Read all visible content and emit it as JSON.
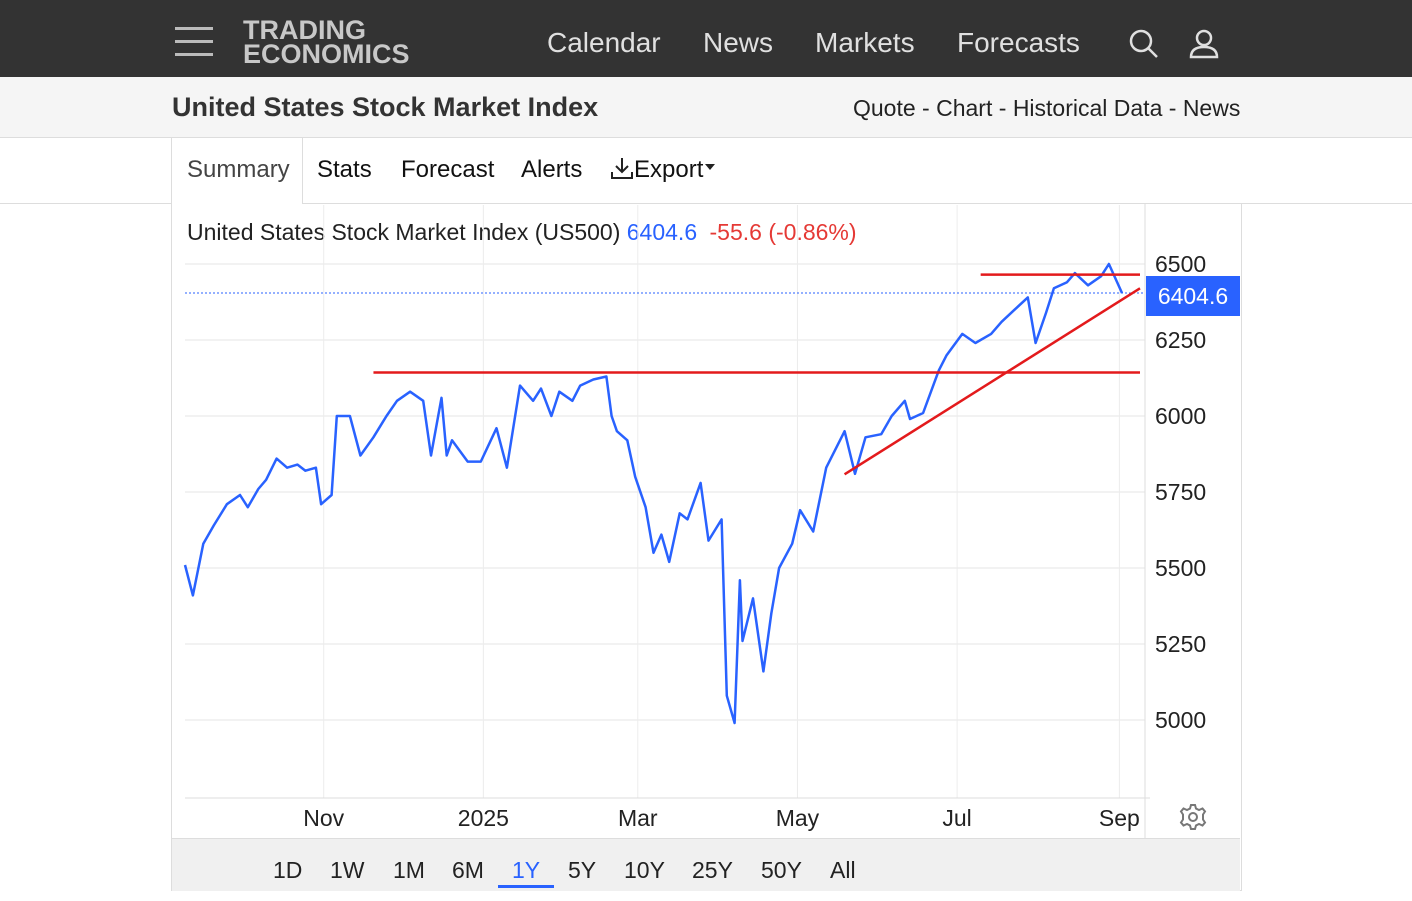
{
  "header": {
    "logo_line1": "TRADING",
    "logo_line2": "ECONOMICS",
    "nav": [
      "Calendar",
      "News",
      "Markets",
      "Forecasts"
    ],
    "icons": [
      "hamburger-menu-icon",
      "search-icon",
      "user-icon"
    ]
  },
  "page": {
    "title": "United States Stock Market Index",
    "quicklinks": [
      "Quote",
      "Chart",
      "Historical Data",
      "News"
    ],
    "separator": " - "
  },
  "tabs": [
    "Summary",
    "Stats",
    "Forecast",
    "Alerts",
    "Export"
  ],
  "chart_header": {
    "name": "United States Stock Market Index (US500)",
    "price": "6404.6",
    "change": "-55.6 (-0.86%)"
  },
  "ranges": [
    "1D",
    "1W",
    "1M",
    "6M",
    "1Y",
    "5Y",
    "10Y",
    "25Y",
    "50Y",
    "All"
  ],
  "active_range": "1Y",
  "colors": {
    "line": "#2962ff",
    "annotation": "#e31a1c",
    "negative": "#e53935",
    "topbar": "#333333"
  },
  "chart_data": {
    "type": "line",
    "series": [
      {
        "x": [
          "2024-09-09",
          "2024-09-12",
          "2024-09-16",
          "2024-09-20",
          "2024-09-25",
          "2024-09-30",
          "2024-10-03",
          "2024-10-07",
          "2024-10-10",
          "2024-10-14",
          "2024-10-18",
          "2024-10-22",
          "2024-10-25",
          "2024-10-29",
          "2024-10-31",
          "2024-11-04",
          "2024-11-06",
          "2024-11-11",
          "2024-11-15",
          "2024-11-20",
          "2024-11-25",
          "2024-11-29",
          "2024-12-04",
          "2024-12-09",
          "2024-12-12",
          "2024-12-16",
          "2024-12-18",
          "2024-12-20",
          "2024-12-26",
          "2024-12-31",
          "2025-01-06",
          "2025-01-10",
          "2025-01-15",
          "2025-01-20",
          "2025-01-23",
          "2025-01-27",
          "2025-01-30",
          "2025-02-04",
          "2025-02-07",
          "2025-02-12",
          "2025-02-17",
          "2025-02-19",
          "2025-02-21",
          "2025-02-25",
          "2025-02-28",
          "2025-03-04",
          "2025-03-07",
          "2025-03-10",
          "2025-03-13",
          "2025-03-17",
          "2025-03-20",
          "2025-03-25",
          "2025-03-28",
          "2025-04-02",
          "2025-04-04",
          "2025-04-07",
          "2025-04-09",
          "2025-04-10",
          "2025-04-14",
          "2025-04-18",
          "2025-04-21",
          "2025-04-24",
          "2025-04-29",
          "2025-05-02",
          "2025-05-07",
          "2025-05-12",
          "2025-05-19",
          "2025-05-23",
          "2025-05-27",
          "2025-06-02",
          "2025-06-06",
          "2025-06-11",
          "2025-06-13",
          "2025-06-18",
          "2025-06-24",
          "2025-06-27",
          "2025-07-03",
          "2025-07-08",
          "2025-07-14",
          "2025-07-18",
          "2025-07-23",
          "2025-07-28",
          "2025-07-31",
          "2025-08-04",
          "2025-08-07",
          "2025-08-12",
          "2025-08-15",
          "2025-08-20",
          "2025-08-25",
          "2025-08-28",
          "2025-09-02"
        ],
        "y": [
          5510,
          5410,
          5580,
          5640,
          5710,
          5740,
          5700,
          5760,
          5790,
          5860,
          5830,
          5840,
          5820,
          5830,
          5710,
          5740,
          6000,
          6000,
          5870,
          5930,
          6000,
          6050,
          6080,
          6050,
          5870,
          6060,
          5870,
          5920,
          5850,
          5850,
          5960,
          5830,
          6100,
          6050,
          6090,
          6000,
          6080,
          6050,
          6100,
          6120,
          6130,
          6000,
          5950,
          5920,
          5800,
          5700,
          5550,
          5610,
          5520,
          5680,
          5660,
          5780,
          5590,
          5660,
          5080,
          4990,
          5460,
          5260,
          5400,
          5160,
          5350,
          5500,
          5580,
          5690,
          5620,
          5830,
          5950,
          5810,
          5930,
          5940,
          6000,
          6050,
          5990,
          6010,
          6150,
          6200,
          6270,
          6240,
          6270,
          6310,
          6350,
          6390,
          6240,
          6340,
          6420,
          6440,
          6470,
          6430,
          6460,
          6500,
          6404.6
        ]
      }
    ],
    "xticks": [
      "Nov",
      "2025",
      "Mar",
      "May",
      "Jul",
      "Sep"
    ],
    "yticks": [
      5000,
      5250,
      5500,
      5750,
      6000,
      6250,
      6500
    ],
    "ylim": [
      4750,
      6550
    ],
    "last_value": "6404.6",
    "annotations": [
      {
        "type": "horizontal",
        "x": [
          "2024-11-20",
          "2025-09-02"
        ],
        "y": [
          6143,
          6143
        ]
      },
      {
        "type": "horizontal",
        "x": [
          "2025-07-10",
          "2025-09-02"
        ],
        "y": [
          6465,
          6465
        ]
      },
      {
        "type": "trendline",
        "x": [
          "2025-05-19",
          "2025-09-02"
        ],
        "y": [
          5808,
          6420
        ]
      }
    ],
    "grid": true
  }
}
